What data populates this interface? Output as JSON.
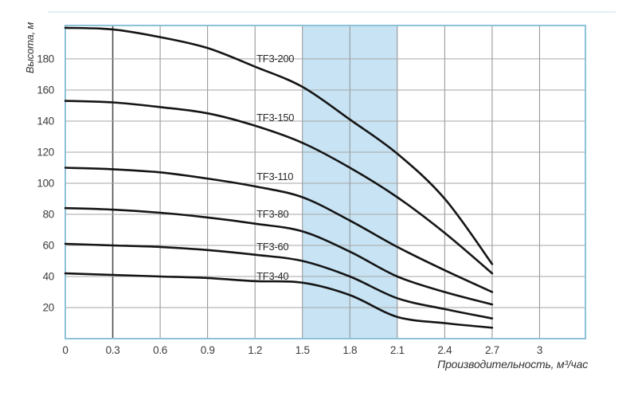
{
  "chart_data": {
    "type": "line",
    "title": "",
    "ylabel": "Высота, м",
    "xlabel": "Производительность, м³/час",
    "x": [
      0,
      0.3,
      0.6,
      0.9,
      1.2,
      1.5,
      1.8,
      2.1,
      2.4,
      2.7
    ],
    "series": [
      {
        "name": "TF3-200",
        "values": [
          200,
          199,
          194,
          187,
          175,
          162,
          141,
          119,
          90,
          48
        ],
        "label_y": 180
      },
      {
        "name": "TF3-150",
        "values": [
          153,
          152,
          149,
          145,
          137,
          126,
          110,
          91,
          68,
          42
        ],
        "label_y": 142
      },
      {
        "name": "TF3-110",
        "values": [
          110,
          109,
          107,
          103,
          98,
          91,
          76,
          59,
          44,
          30
        ],
        "label_y": 104
      },
      {
        "name": "TF3-80",
        "values": [
          84,
          83,
          81,
          78,
          74,
          69,
          56,
          40,
          30,
          22
        ],
        "label_y": 80
      },
      {
        "name": "TF3-60",
        "values": [
          61,
          60,
          59,
          57,
          54,
          50,
          40,
          26,
          19,
          13
        ],
        "label_y": 59
      },
      {
        "name": "TF3-40",
        "values": [
          42,
          41,
          40,
          39,
          37,
          36,
          28,
          14,
          10,
          7
        ],
        "label_y": 40
      }
    ],
    "label_x": 1.21,
    "x_ticks": [
      0,
      0.3,
      0.6,
      0.9,
      1.2,
      1.5,
      1.8,
      2.1,
      2.4,
      2.7,
      3
    ],
    "y_ticks": [
      20,
      40,
      60,
      80,
      100,
      120,
      140,
      160,
      180
    ],
    "xlim": [
      0,
      3.29
    ],
    "ylim": [
      0,
      201.5
    ],
    "grid": true,
    "legend_position": "inline-curve-labels",
    "highlight_band": {
      "from": 1.5,
      "to": 2.1
    },
    "emphasized_x_gridline": 0.3,
    "colors": {
      "curve": "#151515",
      "band": "#c8e4f4",
      "frame": "#8dc2d8",
      "grid_vertical": "#8f8f8f",
      "grid_horizontal": "#a6a6a6",
      "grid_emphasis": "#4d4d4d",
      "tick_text": "#3d3d3d",
      "curve_label_text": "#2b2b2b",
      "faint_top_line": "#cfe7f3",
      "background": "#ffffff"
    }
  }
}
